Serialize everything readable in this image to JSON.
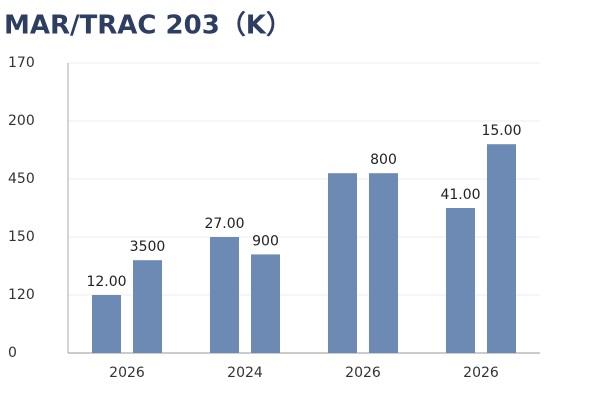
{
  "chart_data": {
    "type": "bar",
    "title": "MAR/TRAC 203（K）",
    "categories": [
      "2026",
      "2024",
      "2026",
      "2026"
    ],
    "series": [
      {
        "color": "#6d8ab5",
        "values": [
          1.0,
          2.0,
          3.1,
          2.5
        ],
        "annotations": [
          "12.00",
          "27.00",
          null,
          "41.00"
        ]
      },
      {
        "color": "#6d8ab5",
        "values": [
          1.6,
          1.7,
          3.1,
          3.6
        ],
        "annotations": [
          "3500",
          "900",
          "800",
          "15.00"
        ]
      }
    ],
    "ylim": [
      0,
      5
    ],
    "yticks": [
      {
        "value": 0,
        "label": "0"
      },
      {
        "value": 1,
        "label": "120"
      },
      {
        "value": 2,
        "label": "150"
      },
      {
        "value": 3,
        "label": "450"
      },
      {
        "value": 4,
        "label": "200"
      },
      {
        "value": 5,
        "label": "170"
      }
    ],
    "grid": true
  }
}
